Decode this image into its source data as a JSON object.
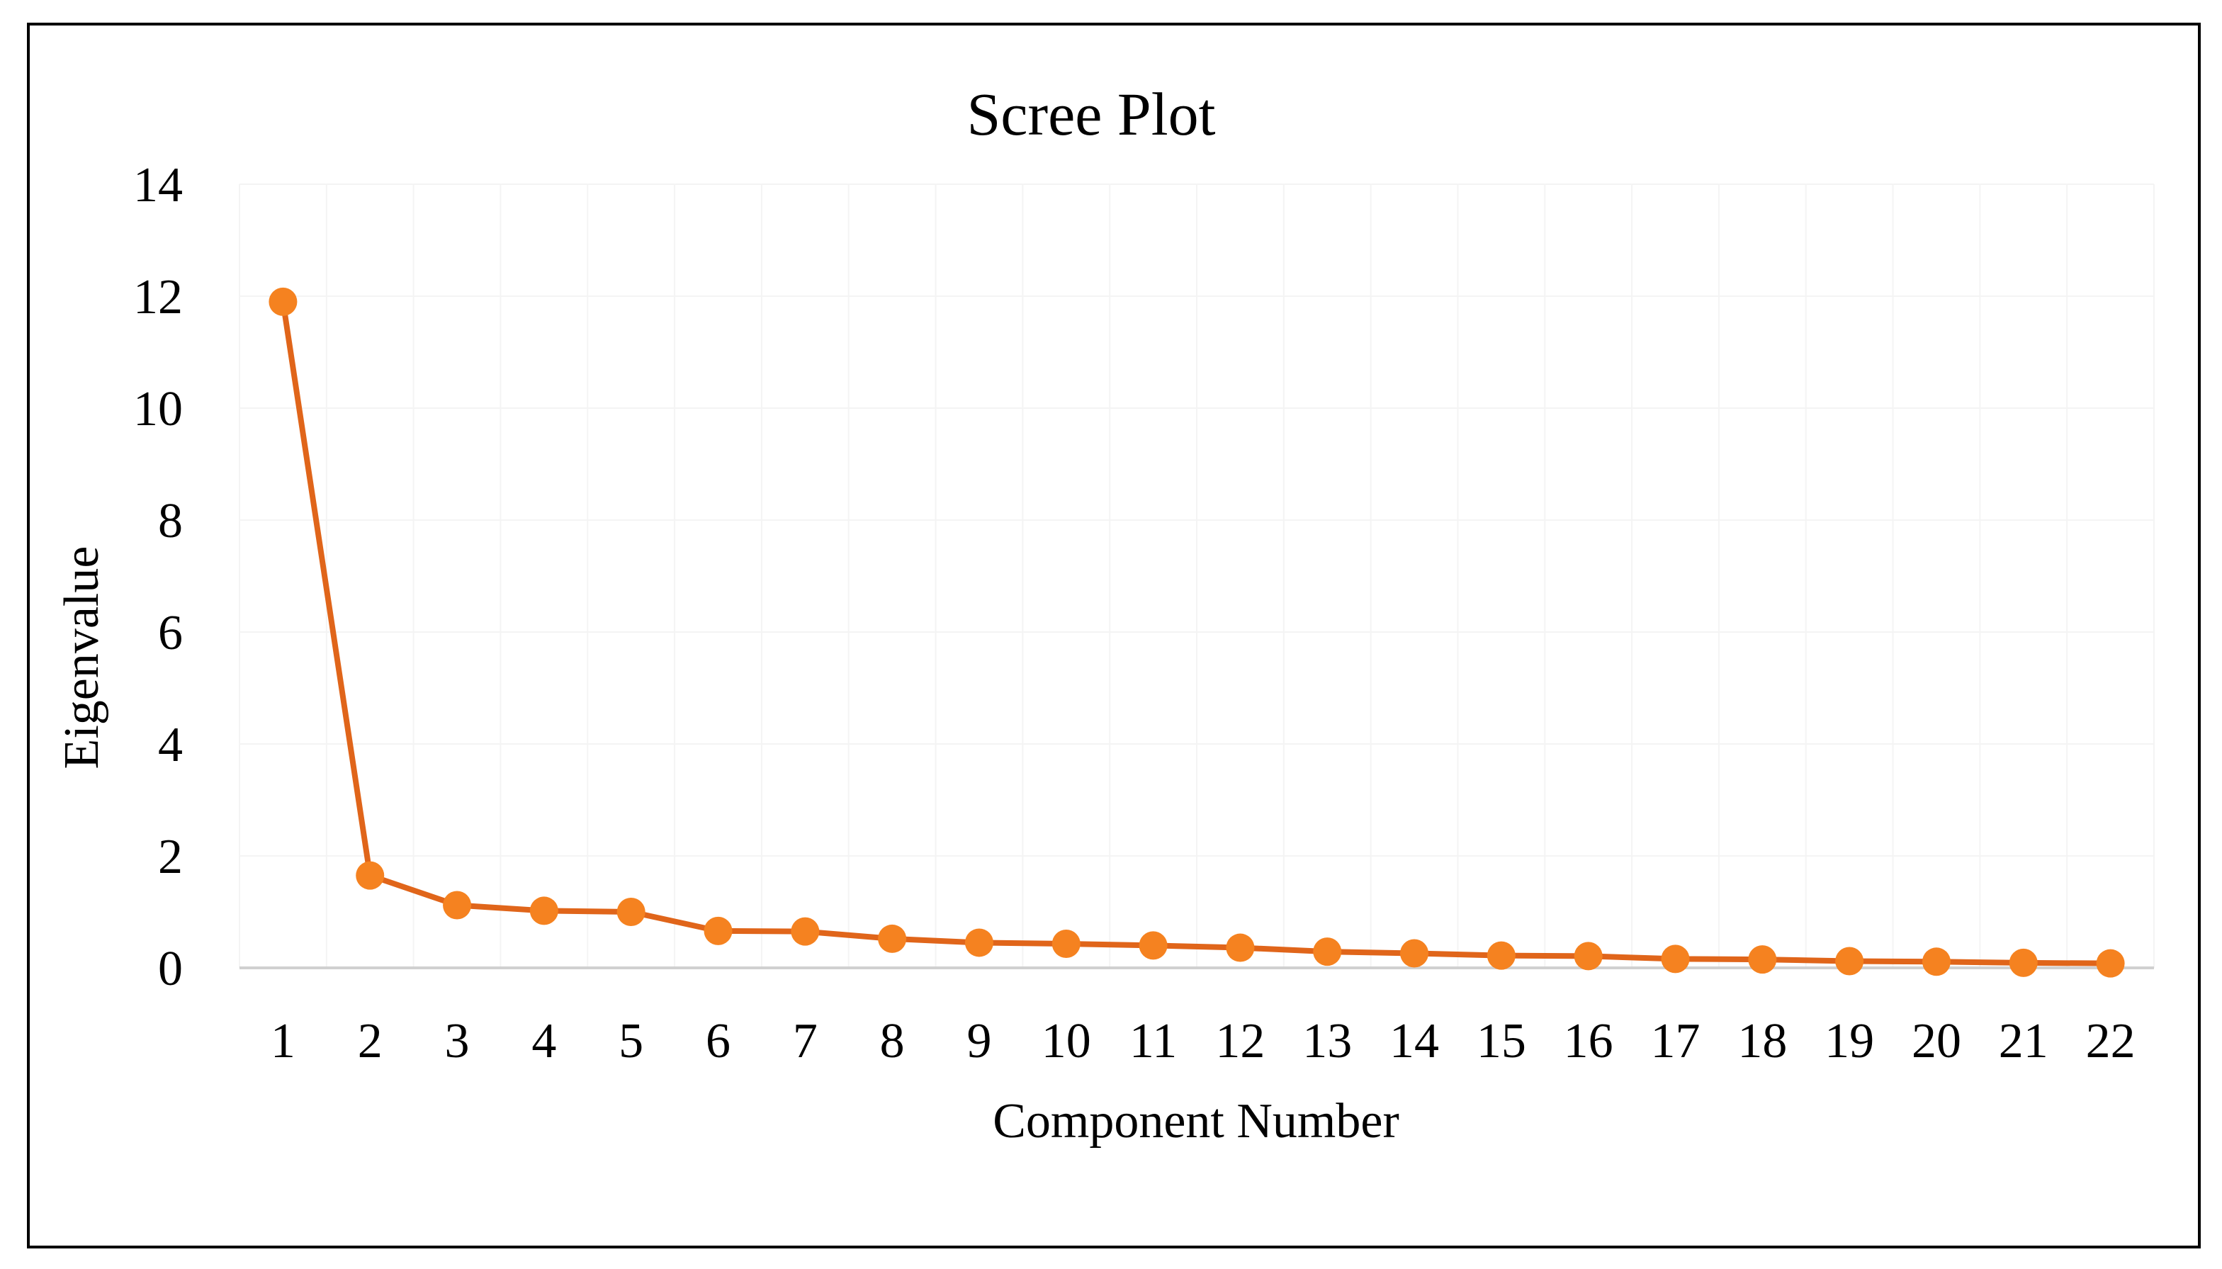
{
  "chart_data": {
    "type": "line",
    "title": "Scree Plot",
    "xlabel": "Component Number",
    "ylabel": "Eigenvalue",
    "ylim": [
      0,
      14
    ],
    "yticks": [
      "0",
      "2",
      "4",
      "6",
      "8",
      "10",
      "12",
      "14"
    ],
    "categories": [
      "1",
      "2",
      "3",
      "4",
      "5",
      "6",
      "7",
      "8",
      "9",
      "10",
      "11",
      "12",
      "13",
      "14",
      "15",
      "16",
      "17",
      "18",
      "19",
      "20",
      "21",
      "22"
    ],
    "series": [
      {
        "values": [
          11.9,
          1.65,
          1.12,
          1.02,
          1.0,
          0.66,
          0.65,
          0.52,
          0.45,
          0.43,
          0.4,
          0.36,
          0.29,
          0.26,
          0.22,
          0.21,
          0.16,
          0.15,
          0.12,
          0.11,
          0.09,
          0.08
        ],
        "line_color": "#e0651a",
        "marker_color": "#f58220"
      }
    ],
    "grid": true,
    "legend": "none"
  }
}
